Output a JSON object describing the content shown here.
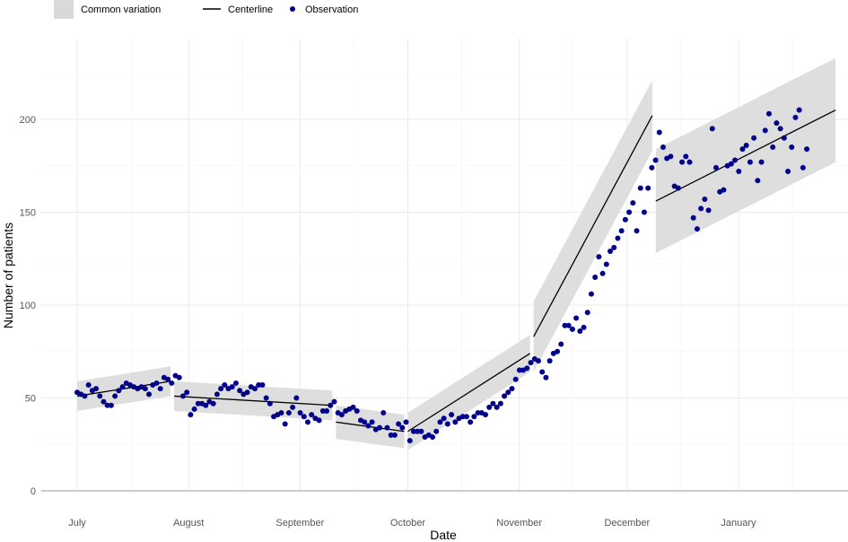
{
  "chart_data": {
    "type": "line",
    "title": "",
    "xlabel": "Date",
    "ylabel": "Number of patients",
    "ylim": [
      0,
      230
    ],
    "xlim": [
      "2020-06-28",
      "2021-02-10"
    ],
    "y_ticks": [
      0,
      50,
      100,
      150,
      200
    ],
    "x_ticks": [
      {
        "date": "2020-07-01",
        "label": "July"
      },
      {
        "date": "2020-08-01",
        "label": "August"
      },
      {
        "date": "2020-09-01",
        "label": "September"
      },
      {
        "date": "2020-10-01",
        "label": "October"
      },
      {
        "date": "2020-11-01",
        "label": "November"
      },
      {
        "date": "2020-12-01",
        "label": "December"
      },
      {
        "date": "2021-01-01",
        "label": "January"
      }
    ],
    "minor_gridlines": [
      "2020-07-16",
      "2020-08-16",
      "2020-09-16",
      "2020-10-16",
      "2020-11-16",
      "2020-12-16",
      "2021-01-16",
      "2021-02-01"
    ],
    "grid": true,
    "legend": {
      "position": "top-left",
      "entries": [
        {
          "label": "Common variation",
          "kind": "band",
          "color": "#d9d9d9"
        },
        {
          "label": "Centerline",
          "kind": "line",
          "color": "#000000"
        },
        {
          "label": "Observation",
          "kind": "point",
          "color": "#00008b"
        }
      ]
    },
    "colors": {
      "band": "#dcdcdc",
      "centerline": "#000000",
      "observation": "#00008b",
      "grid": "#ebebeb",
      "axis": "#555555"
    },
    "segments": [
      {
        "start": "2020-07-01",
        "end": "2020-07-27",
        "center": [
          51,
          59
        ],
        "half_width": 8
      },
      {
        "start": "2020-07-28",
        "end": "2020-09-10",
        "center": [
          51,
          46
        ],
        "half_width": 8
      },
      {
        "start": "2020-09-11",
        "end": "2020-09-30",
        "center": [
          37,
          32
        ],
        "half_width": 9
      },
      {
        "start": "2020-10-01",
        "end": "2020-11-04",
        "center": [
          32,
          74
        ],
        "half_width": 10
      },
      {
        "start": "2020-11-05",
        "end": "2020-12-08",
        "center": [
          83,
          202
        ],
        "half_width": 19
      },
      {
        "start": "2020-12-09",
        "end": "2021-01-28",
        "center": [
          156,
          205
        ],
        "half_width": 28
      }
    ],
    "observations": {
      "start": "2020-07-01",
      "end": "2021-01-20",
      "values": [
        53,
        52,
        51,
        57,
        54,
        55,
        51,
        48,
        46,
        46,
        51,
        54,
        56,
        58,
        57,
        56,
        55,
        56,
        55,
        52,
        57,
        58,
        55,
        61,
        60,
        58,
        62,
        61,
        51,
        53,
        41,
        44,
        47,
        47,
        46,
        48,
        47,
        52,
        55,
        57,
        55,
        56,
        58,
        54,
        52,
        53,
        56,
        55,
        57,
        57,
        50,
        47,
        40,
        41,
        42,
        36,
        42,
        45,
        50,
        42,
        40,
        37,
        41,
        39,
        38,
        43,
        43,
        46,
        48,
        42,
        41,
        43,
        44,
        45,
        43,
        38,
        37,
        35,
        37,
        33,
        34,
        42,
        34,
        30,
        30,
        36,
        34,
        37,
        27,
        32,
        32,
        32,
        29,
        30,
        29,
        32,
        37,
        39,
        36,
        41,
        37,
        39,
        40,
        40,
        37,
        40,
        42,
        42,
        41,
        45,
        47,
        45,
        47,
        51,
        53,
        55,
        60,
        65,
        65,
        66,
        69,
        71,
        70,
        64,
        61,
        70,
        74,
        75,
        79,
        89,
        89,
        87,
        93,
        86,
        88,
        96,
        106,
        115,
        126,
        117,
        122,
        129,
        131,
        136,
        140,
        146,
        150,
        155,
        140,
        163,
        150,
        163,
        174,
        178,
        193,
        185,
        179,
        180,
        164,
        163,
        177,
        180,
        177,
        147,
        141,
        152,
        157,
        151,
        195,
        174,
        161,
        162,
        175,
        176,
        178,
        172,
        184,
        186,
        177,
        190,
        167,
        177,
        194,
        203,
        185,
        198,
        195,
        190,
        172,
        185,
        201,
        205,
        174,
        184
      ]
    }
  }
}
